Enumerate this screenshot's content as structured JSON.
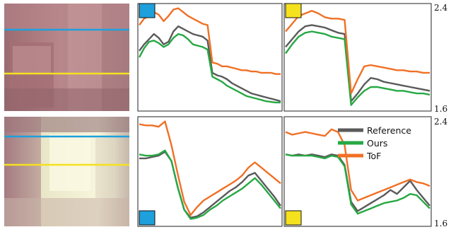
{
  "colors": {
    "reference": "#5a5a5a",
    "ours": "#27a844",
    "tof": "#f07025",
    "blue_marker": "#1ea0dc",
    "yellow_marker": "#f5e11e"
  },
  "scenes": [
    {
      "name": "top",
      "line_colors": [
        "blue",
        "yellow"
      ]
    },
    {
      "name": "bottom",
      "line_colors": [
        "blue",
        "yellow"
      ]
    }
  ],
  "axis": {
    "ticks": [
      "2.4",
      "1.6",
      "2.4",
      "1.6"
    ],
    "ylim": [
      1.6,
      2.4
    ]
  },
  "legend": {
    "entries": [
      "Reference",
      "Ours",
      "ToF"
    ]
  },
  "chart_data": [
    {
      "type": "line",
      "panel": "top-left",
      "marker": "blue",
      "ylim": [
        1.6,
        2.4
      ],
      "series": [
        {
          "name": "Reference",
          "values": [
            2.05,
            2.1,
            2.14,
            2.18,
            2.15,
            2.1,
            2.12,
            2.2,
            2.24,
            2.22,
            2.2,
            2.18,
            2.17,
            2.16,
            2.13,
            1.88,
            1.86,
            1.85,
            1.83,
            1.8,
            1.78,
            1.76,
            1.74,
            1.72,
            1.71,
            1.7,
            1.69,
            1.68,
            1.67,
            1.66
          ]
        },
        {
          "name": "Ours",
          "values": [
            2.0,
            2.07,
            2.12,
            2.13,
            2.11,
            2.08,
            2.1,
            2.15,
            2.18,
            2.17,
            2.14,
            2.1,
            2.09,
            2.08,
            2.06,
            1.85,
            1.83,
            1.81,
            1.78,
            1.76,
            1.74,
            1.72,
            1.7,
            1.69,
            1.68,
            1.67,
            1.66,
            1.655,
            1.65,
            1.65
          ]
        },
        {
          "name": "ToF",
          "values": [
            2.25,
            2.3,
            2.32,
            2.35,
            2.33,
            2.28,
            2.32,
            2.37,
            2.38,
            2.35,
            2.32,
            2.3,
            2.28,
            2.26,
            2.25,
            1.96,
            1.95,
            1.93,
            1.93,
            1.92,
            1.91,
            1.9,
            1.9,
            1.89,
            1.89,
            1.88,
            1.88,
            1.88,
            1.87,
            1.87
          ]
        }
      ]
    },
    {
      "type": "line",
      "panel": "top-right",
      "marker": "yellow",
      "ylim": [
        1.6,
        2.4
      ],
      "series": [
        {
          "name": "Reference",
          "values": [
            2.08,
            2.14,
            2.2,
            2.24,
            2.25,
            2.24,
            2.23,
            2.21,
            2.19,
            2.18,
            1.66,
            1.72,
            1.79,
            1.84,
            1.83,
            1.81,
            1.8,
            1.79,
            1.78,
            1.77,
            1.76,
            1.75,
            1.74
          ]
        },
        {
          "name": "Ours",
          "values": [
            2.03,
            2.1,
            2.16,
            2.19,
            2.2,
            2.19,
            2.18,
            2.16,
            2.15,
            2.14,
            1.63,
            1.69,
            1.74,
            1.77,
            1.77,
            1.76,
            1.75,
            1.74,
            1.74,
            1.73,
            1.72,
            1.72,
            1.71
          ]
        },
        {
          "name": "ToF",
          "values": [
            2.2,
            2.26,
            2.32,
            2.34,
            2.36,
            2.34,
            2.31,
            2.3,
            2.3,
            2.29,
            1.72,
            1.83,
            1.93,
            1.94,
            1.93,
            1.92,
            1.91,
            1.9,
            1.9,
            1.89,
            1.89,
            1.88,
            1.88
          ]
        }
      ]
    },
    {
      "type": "line",
      "panel": "bottom-left",
      "marker": "blue",
      "ylim": [
        1.6,
        2.4
      ],
      "series": [
        {
          "name": "Reference",
          "values": [
            2.1,
            2.1,
            2.11,
            2.12,
            2.15,
            2.08,
            1.88,
            1.71,
            1.65,
            1.66,
            1.69,
            1.73,
            1.77,
            1.81,
            1.85,
            1.88,
            1.92,
            1.97,
            1.99,
            1.93,
            1.87,
            1.81,
            1.74
          ]
        },
        {
          "name": "Ours",
          "values": [
            2.13,
            2.12,
            2.12,
            2.13,
            2.16,
            2.08,
            1.88,
            1.71,
            1.64,
            1.65,
            1.67,
            1.71,
            1.74,
            1.78,
            1.81,
            1.84,
            1.87,
            1.91,
            1.95,
            1.9,
            1.84,
            1.78,
            1.72
          ]
        },
        {
          "name": "ToF",
          "values": [
            2.36,
            2.35,
            2.35,
            2.34,
            2.38,
            2.2,
            1.98,
            1.77,
            1.67,
            1.73,
            1.78,
            1.81,
            1.84,
            1.87,
            1.9,
            1.93,
            1.97,
            2.03,
            2.07,
            2.03,
            1.99,
            1.95,
            1.91
          ]
        }
      ]
    },
    {
      "type": "line",
      "panel": "bottom-right",
      "marker": "yellow",
      "ylim": [
        1.6,
        2.4
      ],
      "series": [
        {
          "name": "Reference",
          "values": [
            2.13,
            2.12,
            2.13,
            2.12,
            2.13,
            2.12,
            2.11,
            2.13,
            2.12,
            2.05,
            1.77,
            1.7,
            1.73,
            1.76,
            1.79,
            1.82,
            1.86,
            1.83,
            1.88,
            1.93,
            1.86,
            1.8,
            1.74
          ]
        },
        {
          "name": "Ours",
          "values": [
            2.13,
            2.12,
            2.12,
            2.12,
            2.12,
            2.11,
            2.1,
            2.12,
            2.11,
            2.04,
            1.75,
            1.68,
            1.7,
            1.72,
            1.74,
            1.76,
            1.77,
            1.78,
            1.8,
            1.83,
            1.82,
            1.77,
            1.72
          ]
        },
        {
          "name": "ToF",
          "values": [
            2.3,
            2.28,
            2.29,
            2.3,
            2.29,
            2.28,
            2.27,
            2.32,
            2.3,
            2.2,
            1.86,
            1.78,
            1.8,
            1.82,
            1.84,
            1.86,
            1.88,
            1.9,
            1.92,
            1.94,
            1.92,
            1.91,
            1.89
          ]
        }
      ]
    }
  ]
}
